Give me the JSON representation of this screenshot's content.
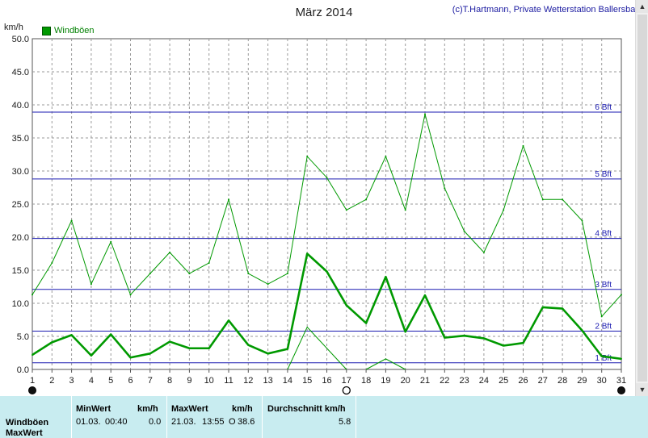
{
  "header": {
    "title": "März 2014",
    "credit": "(c)T.Hartmann, Private Wetterstation Ballersbach",
    "unit": "km/h"
  },
  "legend": {
    "label": "Windböen",
    "color": "#009900"
  },
  "chart_data": {
    "type": "line",
    "x": [
      1,
      2,
      3,
      4,
      5,
      6,
      7,
      8,
      9,
      10,
      11,
      12,
      13,
      14,
      15,
      16,
      17,
      18,
      19,
      20,
      21,
      22,
      23,
      24,
      25,
      26,
      27,
      28,
      29,
      30,
      31
    ],
    "ylim": [
      0,
      50
    ],
    "yticks": [
      "0.0",
      "5.0",
      "10.0",
      "15.0",
      "20.0",
      "25.0",
      "30.0",
      "35.0",
      "40.0",
      "45.0",
      "50.0"
    ],
    "xticks": [
      "1",
      "2",
      "3",
      "4",
      "5",
      "6",
      "7",
      "8",
      "9",
      "10",
      "11",
      "12",
      "13",
      "14",
      "15",
      "16",
      "17",
      "18",
      "19",
      "20",
      "21",
      "22",
      "23",
      "24",
      "25",
      "26",
      "27",
      "28",
      "29",
      "30",
      "31"
    ],
    "grid": true,
    "series": [
      {
        "role": "daily-mean",
        "values": [
          2.2,
          4.1,
          5.2,
          2.1,
          5.3,
          1.8,
          2.4,
          4.2,
          3.2,
          3.2,
          7.4,
          3.7,
          2.4,
          3.1,
          17.5,
          14.8,
          9.7,
          7.0,
          14.0,
          5.7,
          11.2,
          4.8,
          5.1,
          4.7,
          3.6,
          4.0,
          9.4,
          9.2,
          5.9,
          2.0,
          1.6
        ]
      },
      {
        "role": "daily-max",
        "values": [
          11.3,
          16.1,
          22.5,
          12.9,
          19.3,
          11.3,
          14.5,
          17.7,
          14.5,
          16.1,
          25.7,
          14.5,
          12.9,
          14.5,
          32.2,
          29.0,
          24.1,
          25.7,
          32.2,
          24.1,
          38.6,
          27.4,
          20.9,
          17.7,
          24.1,
          33.8,
          25.7,
          25.7,
          22.5,
          8.0,
          11.3
        ]
      },
      {
        "role": "daily-min",
        "segments": [
          [
            [
              14,
              0
            ],
            [
              15,
              6.4
            ],
            [
              17,
              0
            ]
          ],
          [
            [
              18,
              0
            ],
            [
              19,
              1.6
            ],
            [
              20,
              0
            ]
          ]
        ]
      }
    ],
    "beaufort_lines": [
      {
        "label": "1 Bft",
        "value": 1
      },
      {
        "label": "2 Bft",
        "value": 5.8
      },
      {
        "label": "3 Bft",
        "value": 12.1
      },
      {
        "label": "4 Bft",
        "value": 19.8
      },
      {
        "label": "5 Bft",
        "value": 28.8
      },
      {
        "label": "6 Bft",
        "value": 38.9
      }
    ],
    "markers": [
      {
        "x": 1,
        "type": "new-moon"
      },
      {
        "x": 17,
        "type": "full-moon"
      },
      {
        "x": 31,
        "type": "new-moon"
      }
    ],
    "line_color": "#009900",
    "beaufort_color": "#1a1ab0"
  },
  "stats": {
    "min_header": "MinWert",
    "min_unit": "km/h",
    "max_header": "MaxWert",
    "max_unit": "km/h",
    "avg_header": "Durchschnitt km/h",
    "row_label": "Windböen",
    "min_date": "01.03.",
    "min_time": "00:40",
    "min_value": "0.0",
    "max_date": "21.03.",
    "max_time": "13:55",
    "max_flag": "O",
    "max_value": "38.6",
    "avg_value": "5.8",
    "row2_label": "MaxWert"
  }
}
